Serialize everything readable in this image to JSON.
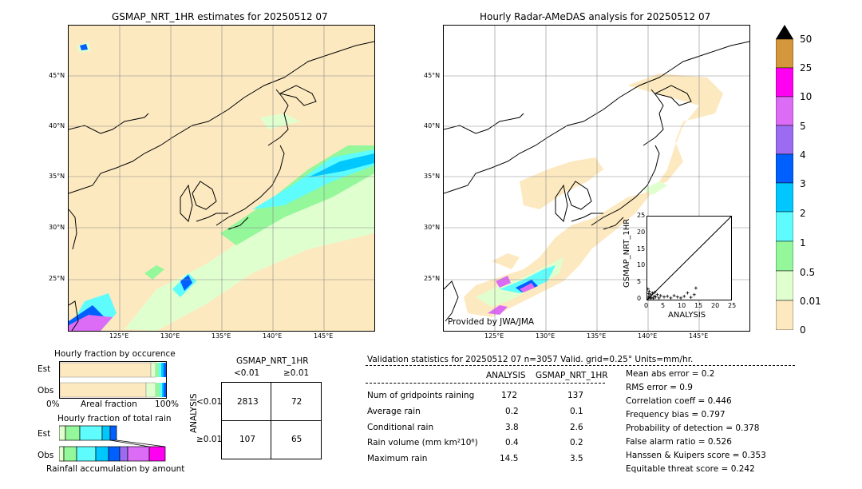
{
  "left_map": {
    "title": "GSMAP_NRT_1HR estimates for 20250512 07",
    "lat_labels": [
      "45°N",
      "40°N",
      "35°N",
      "30°N",
      "25°N"
    ],
    "lon_labels": [
      "125°E",
      "130°E",
      "135°E",
      "140°E",
      "145°E"
    ]
  },
  "right_map": {
    "title": "Hourly Radar-AMeDAS analysis for 20250512 07",
    "lat_labels": [
      "45°N",
      "40°N",
      "35°N",
      "30°N",
      "25°N"
    ],
    "lon_labels": [
      "125°E",
      "130°E",
      "135°E",
      "140°E",
      "145°E"
    ],
    "credit": "Provided by JWA/JMA"
  },
  "colors": {
    "ocean": "#fde9c0",
    "c001": "#fde9c0",
    "c05": "#e0ffcf",
    "c1": "#94f79a",
    "c2": "#5efcfc",
    "c3": "#00c8ff",
    "c4": "#0060ff",
    "c5": "#9b6cf2",
    "c10": "#dc6cf5",
    "c25": "#ff00f0",
    "c50": "#d4973b"
  },
  "colorbar": {
    "labels": [
      "50",
      "25",
      "10",
      "5",
      "4",
      "3",
      "2",
      "1",
      "0.5",
      "0.01",
      "0"
    ]
  },
  "scatter": {
    "xlabel": "ANALYSIS",
    "ylabel": "GSMAP_NRT_1HR",
    "ticks": [
      "0",
      "5",
      "10",
      "15",
      "20",
      "25"
    ]
  },
  "chart_data": {
    "type": "scatter",
    "xlabel": "ANALYSIS",
    "ylabel": "GSMAP_NRT_1HR",
    "xlim": [
      0,
      25
    ],
    "ylim": [
      0,
      25
    ],
    "points": [
      [
        0.3,
        0.5
      ],
      [
        0.5,
        1.0
      ],
      [
        0.8,
        0.4
      ],
      [
        1.0,
        1.5
      ],
      [
        1.2,
        0.6
      ],
      [
        1.5,
        2.0
      ],
      [
        0.6,
        2.5
      ],
      [
        2.0,
        1.0
      ],
      [
        2.5,
        0.8
      ],
      [
        3.0,
        1.5
      ],
      [
        3.5,
        0.5
      ],
      [
        4.0,
        1.2
      ],
      [
        5.0,
        0.8
      ],
      [
        6.0,
        1.0
      ],
      [
        7.0,
        0.5
      ],
      [
        8.0,
        1.2
      ],
      [
        9.0,
        0.8
      ],
      [
        10.0,
        0.5
      ],
      [
        11.0,
        1.0
      ],
      [
        12.0,
        2.0
      ],
      [
        13.0,
        0.7
      ],
      [
        14.0,
        1.5
      ],
      [
        14.5,
        3.5
      ],
      [
        0.2,
        3.2
      ],
      [
        0.4,
        1.8
      ],
      [
        1.8,
        0.3
      ],
      [
        2.2,
        2.2
      ]
    ]
  },
  "hourly_fraction_occurrence": {
    "title": "Hourly fraction by occurence",
    "row_est": "Est",
    "row_obs": "Obs",
    "axis_left": "0%",
    "axis_mid": "Areal fraction",
    "axis_right": "100%"
  },
  "hourly_fraction_amount": {
    "title": "Hourly fraction of total rain",
    "row_est": "Est",
    "row_obs": "Obs",
    "axis_label": "Rainfall accumulation by amount"
  },
  "contingency": {
    "title": "GSMAP_NRT_1HR",
    "col_lt": "<0.01",
    "col_ge": "≥0.01",
    "row_axis": "ANALYSIS",
    "row_lt": "<0.01",
    "row_ge": "≥0.01",
    "cells": [
      "2813",
      "72",
      "107",
      "65"
    ]
  },
  "validation": {
    "header": "Validation statistics for 20250512 07  n=3057 Valid. grid=0.25° Units=mm/hr.",
    "col_analysis": "ANALYSIS",
    "col_gsmap": "GSMAP_NRT_1HR",
    "rows": [
      {
        "label": "Num of gridpoints raining",
        "a": "172",
        "g": "137"
      },
      {
        "label": "Average rain",
        "a": "0.2",
        "g": "0.1"
      },
      {
        "label": "Conditional rain",
        "a": "3.8",
        "g": "2.6"
      },
      {
        "label": "Rain volume (mm km²10⁶)",
        "a": "0.4",
        "g": "0.2"
      },
      {
        "label": "Maximum rain",
        "a": "14.5",
        "g": "3.5"
      }
    ],
    "scores": [
      "Mean abs error =    0.2",
      "RMS error =    0.9",
      "Correlation coeff =  0.446",
      "Frequency bias =  0.797",
      "Probability of detection =  0.378",
      "False alarm ratio =  0.526",
      "Hanssen & Kuipers score =  0.353",
      "Equitable threat score =  0.242"
    ]
  }
}
